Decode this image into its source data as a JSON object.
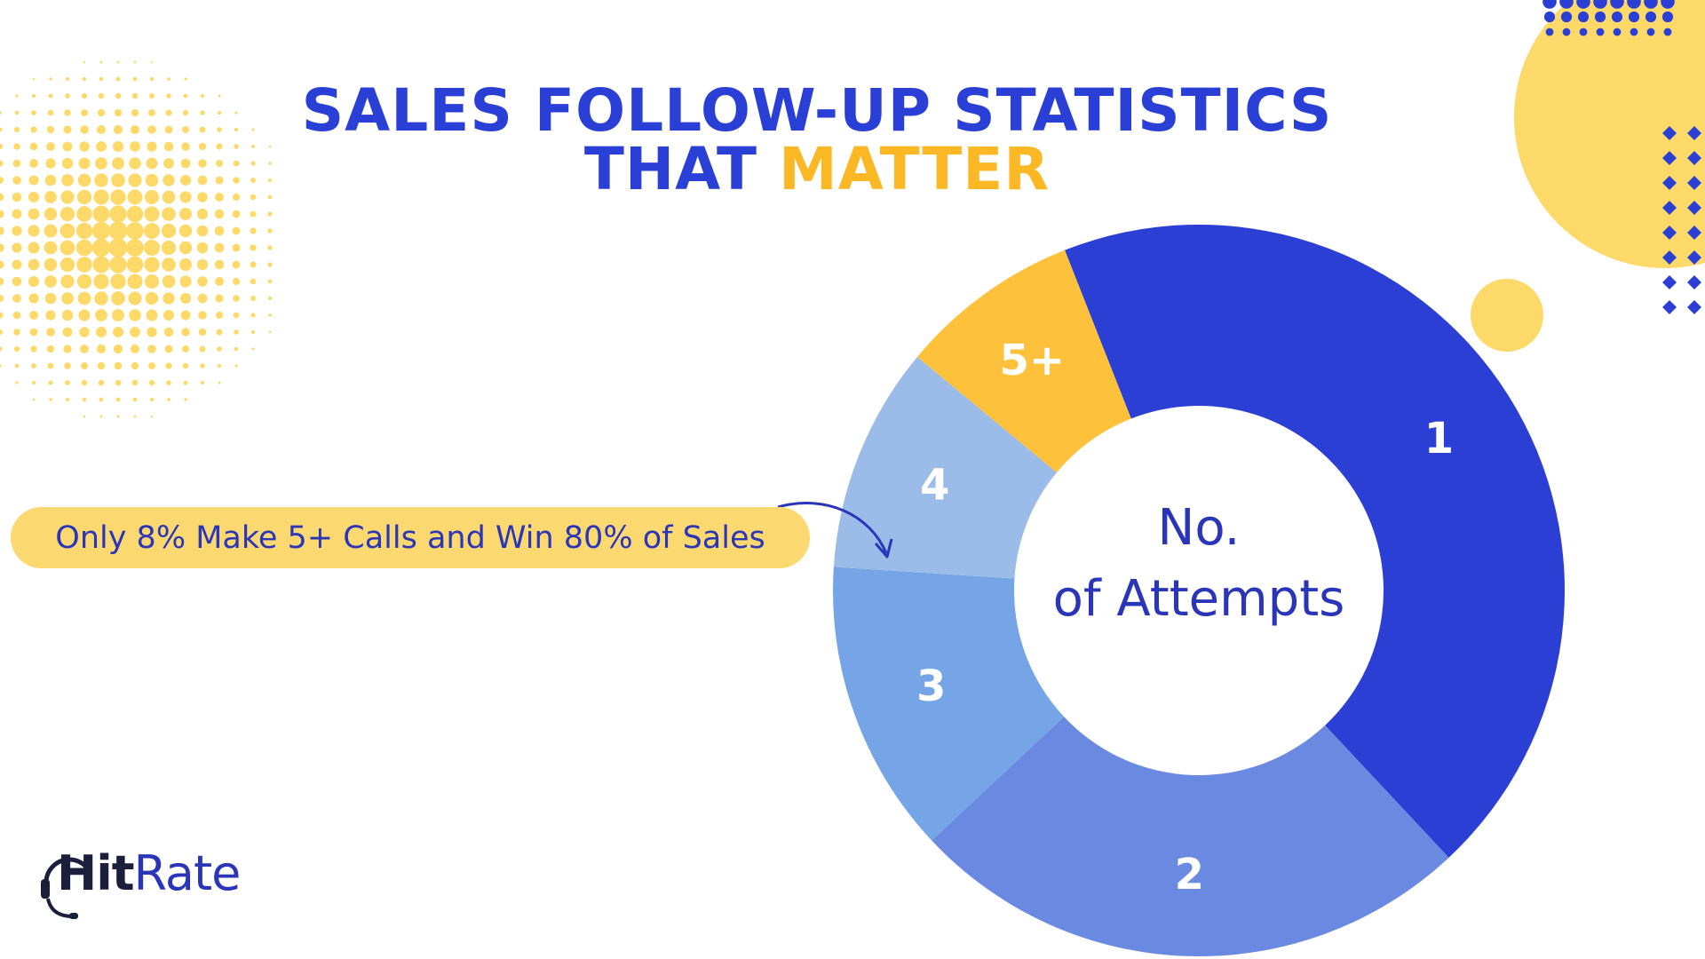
{
  "title": {
    "line1": "SALES FOLLOW-UP STATISTICS",
    "line2_part1": "THAT ",
    "line2_part2": "MATTER"
  },
  "callout": {
    "text": "Only 8% Make 5+ Calls and Win 80% of Sales"
  },
  "center_label": {
    "line1": "No.",
    "line2": "of Attempts"
  },
  "logo": {
    "hit": "Hit",
    "rate": "Rate"
  },
  "colors": {
    "title_blue": "#2a3fd6",
    "title_accent": "#fbb724",
    "decor_yellow": "#fdd96a",
    "decor_blue": "#2b3fd4"
  },
  "chart_data": {
    "type": "pie",
    "donut": true,
    "categories": [
      "1",
      "2",
      "3",
      "4",
      "5+"
    ],
    "values": [
      44,
      25,
      13,
      10,
      8
    ],
    "colors": [
      "#2c3fd4",
      "#6a89e0",
      "#75a5e6",
      "#9bbbe8",
      "#fec13b"
    ]
  }
}
